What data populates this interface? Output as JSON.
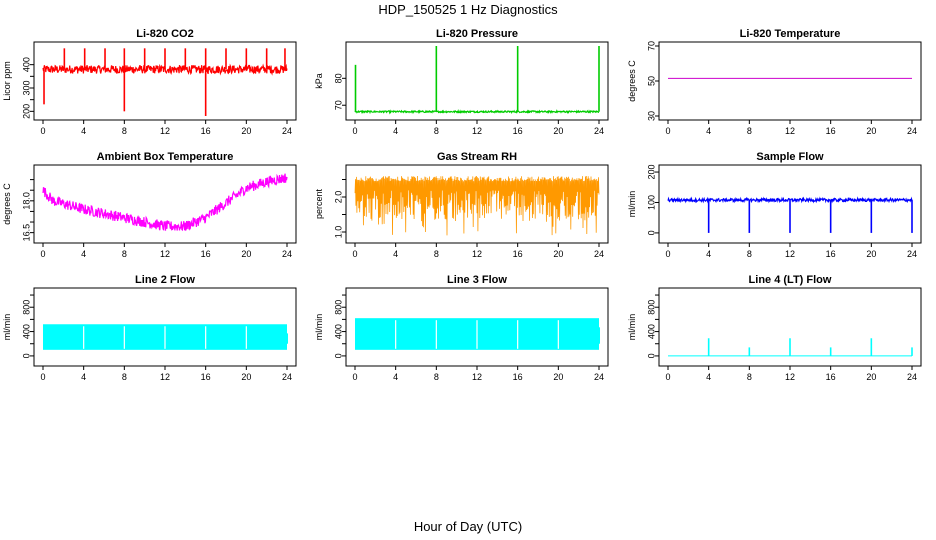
{
  "figure": {
    "title": "HDP_150525  1 Hz Diagnostics",
    "xlabel": "Hour of Day (UTC)"
  },
  "chart_data": [
    {
      "type": "line",
      "title": "Li-820 CO2",
      "ylabel": "Licor ppm",
      "color": "#ff0000",
      "xlim": [
        0,
        24
      ],
      "xticks": [
        0,
        4,
        8,
        12,
        16,
        20,
        24
      ],
      "ylim": [
        180,
        480
      ],
      "yticks": [
        200,
        250,
        300,
        350,
        400
      ],
      "yticklabels": [
        "200",
        "",
        "300",
        "",
        "400"
      ],
      "baseline": 380,
      "noise": 18,
      "spikes": [
        {
          "x": 2.1,
          "y": 470
        },
        {
          "x": 4.1,
          "y": 470
        },
        {
          "x": 6.1,
          "y": 470
        },
        {
          "x": 8.0,
          "y": 470
        },
        {
          "x": 10.0,
          "y": 470
        },
        {
          "x": 12.0,
          "y": 470
        },
        {
          "x": 14.0,
          "y": 470
        },
        {
          "x": 16.0,
          "y": 470
        },
        {
          "x": 18.0,
          "y": 470
        },
        {
          "x": 20.0,
          "y": 470
        },
        {
          "x": 22.0,
          "y": 470
        },
        {
          "x": 23.8,
          "y": 470
        }
      ],
      "dips": [
        {
          "x": 0.1,
          "y": 230
        },
        {
          "x": 8.0,
          "y": 200
        },
        {
          "x": 16.0,
          "y": 180
        }
      ]
    },
    {
      "type": "line",
      "title": "Li-820 Pressure",
      "ylabel": "kPa",
      "color": "#00cc00",
      "xlim": [
        0,
        24
      ],
      "xticks": [
        0,
        4,
        8,
        12,
        16,
        20,
        24
      ],
      "ylim": [
        66,
        92
      ],
      "yticks": [
        70,
        80
      ],
      "yticklabels": [
        "70",
        "80"
      ],
      "baseline": 67.6,
      "noise": 0.3,
      "spikes": [
        {
          "x": 0.05,
          "y": 85
        },
        {
          "x": 8.0,
          "y": 92
        },
        {
          "x": 16.0,
          "y": 92
        },
        {
          "x": 24.0,
          "y": 92
        }
      ],
      "dips": []
    },
    {
      "type": "line",
      "title": "Li-820 Temperature",
      "ylabel": "degrees C",
      "color": "#cc00cc",
      "xlim": [
        0,
        24
      ],
      "xticks": [
        0,
        4,
        8,
        12,
        16,
        20,
        24
      ],
      "ylim": [
        30,
        70
      ],
      "yticks": [
        30,
        50,
        70
      ],
      "yticklabels": [
        "30",
        "50",
        "70"
      ],
      "baseline": 51.5,
      "noise": 0.0,
      "spikes": [],
      "dips": []
    },
    {
      "type": "line",
      "title": "Ambient Box Temperature",
      "ylabel": "degrees C",
      "color": "#ff00ff",
      "xlim": [
        0,
        24
      ],
      "xticks": [
        0,
        4,
        8,
        12,
        16,
        20,
        24
      ],
      "ylim": [
        16.2,
        19.5
      ],
      "yticks": [
        16.5,
        17.0,
        17.5,
        18.0,
        18.5,
        19.0
      ],
      "yticklabels": [
        "16.5",
        "",
        "",
        "18.0",
        "",
        ""
      ],
      "trend": [
        {
          "x": 0,
          "y": 18.5
        },
        {
          "x": 1,
          "y": 18.0
        },
        {
          "x": 4,
          "y": 17.6
        },
        {
          "x": 8,
          "y": 17.2
        },
        {
          "x": 12,
          "y": 16.8
        },
        {
          "x": 14,
          "y": 16.8
        },
        {
          "x": 16,
          "y": 17.2
        },
        {
          "x": 18,
          "y": 17.9
        },
        {
          "x": 20,
          "y": 18.6
        },
        {
          "x": 22,
          "y": 18.9
        },
        {
          "x": 24,
          "y": 19.1
        }
      ],
      "noise": 0.25,
      "spikes": [],
      "dips": []
    },
    {
      "type": "line",
      "title": "Gas Stream RH",
      "ylabel": "percent",
      "color": "#ff9900",
      "xlim": [
        0,
        24
      ],
      "xticks": [
        0,
        4,
        8,
        12,
        16,
        20,
        24
      ],
      "ylim": [
        0.8,
        2.8
      ],
      "yticks": [
        1.0,
        1.5,
        2.0,
        2.5
      ],
      "yticklabels": [
        "1.0",
        "",
        "2.0",
        ""
      ],
      "band": [
        1.0,
        2.6
      ],
      "noise": 0.0,
      "spikes": [],
      "dips": []
    },
    {
      "type": "line",
      "title": "Sample Flow",
      "ylabel": "ml/min",
      "color": "#0000ff",
      "xlim": [
        0,
        24
      ],
      "xticks": [
        0,
        4,
        8,
        12,
        16,
        20,
        24
      ],
      "ylim": [
        -20,
        210
      ],
      "yticks": [
        0,
        100,
        200
      ],
      "yticklabels": [
        "0",
        "100",
        "200"
      ],
      "baseline": 108,
      "noise": 5,
      "spikes": [],
      "dips": [
        {
          "x": 4.0,
          "y": 0
        },
        {
          "x": 8.0,
          "y": 0
        },
        {
          "x": 12.0,
          "y": 0
        },
        {
          "x": 16.0,
          "y": 0
        },
        {
          "x": 20.0,
          "y": 0
        },
        {
          "x": 24.0,
          "y": 0
        }
      ]
    },
    {
      "type": "area",
      "title": "Line 2 Flow",
      "ylabel": "ml/min",
      "color": "#00ffff",
      "xlim": [
        0,
        24
      ],
      "xticks": [
        0,
        4,
        8,
        12,
        16,
        20,
        24
      ],
      "ylim": [
        -100,
        1050
      ],
      "yticks": [
        0,
        200,
        400,
        600,
        800,
        1000
      ],
      "yticklabels": [
        "0",
        "",
        "400",
        "",
        "800",
        ""
      ],
      "band": [
        100,
        520
      ],
      "gaps": [
        4.0,
        8.0,
        12.0,
        16.0,
        20.0
      ],
      "spikes": [],
      "dips": []
    },
    {
      "type": "area",
      "title": "Line 3 Flow",
      "ylabel": "ml/min",
      "color": "#00ffff",
      "xlim": [
        0,
        24
      ],
      "xticks": [
        0,
        4,
        8,
        12,
        16,
        20,
        24
      ],
      "ylim": [
        -100,
        1050
      ],
      "yticks": [
        0,
        200,
        400,
        600,
        800,
        1000
      ],
      "yticklabels": [
        "0",
        "",
        "400",
        "",
        "800",
        ""
      ],
      "band": [
        100,
        620
      ],
      "gaps": [
        4.0,
        8.0,
        12.0,
        16.0,
        20.0
      ],
      "spikes": [],
      "dips": []
    },
    {
      "type": "line",
      "title": "Line 4 (LT) Flow",
      "ylabel": "ml/min",
      "color": "#00ffff",
      "xlim": [
        0,
        24
      ],
      "xticks": [
        0,
        4,
        8,
        12,
        16,
        20,
        24
      ],
      "ylim": [
        -100,
        1050
      ],
      "yticks": [
        0,
        200,
        400,
        600,
        800,
        1000
      ],
      "yticklabels": [
        "0",
        "",
        "400",
        "",
        "800",
        ""
      ],
      "baseline": 0,
      "noise": 0,
      "spikes": [
        {
          "x": 4.0,
          "y": 290
        },
        {
          "x": 8.0,
          "y": 140
        },
        {
          "x": 12.0,
          "y": 290
        },
        {
          "x": 16.0,
          "y": 140
        },
        {
          "x": 20.0,
          "y": 290
        },
        {
          "x": 24.0,
          "y": 140
        }
      ],
      "dips": []
    }
  ]
}
